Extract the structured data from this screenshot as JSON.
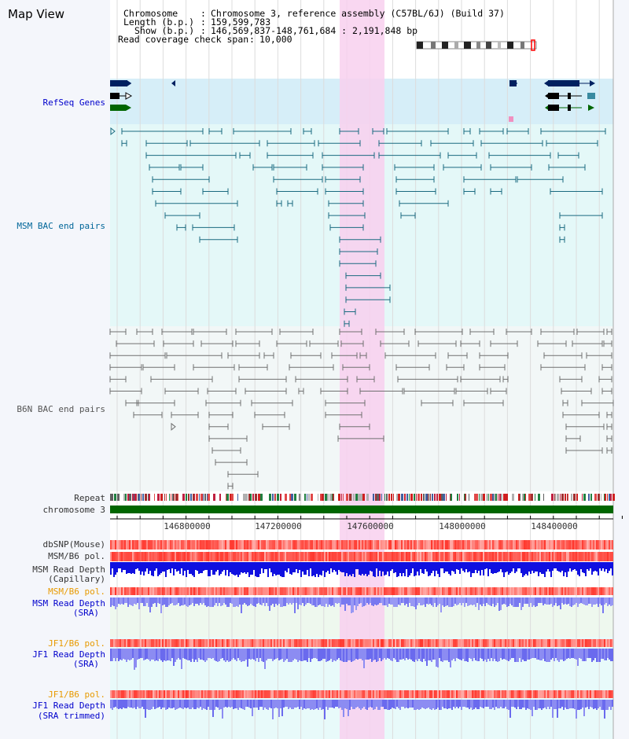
{
  "app": {
    "title": "Map View"
  },
  "info": {
    "chromosome_key": "Chromosome",
    "chromosome_value": "Chromosome 3, reference assembly (C57BL/6J) (Build 37)",
    "length_key": "Length (b.p.)",
    "length_value": "159,599,783",
    "show_key": "Show (b.p.)",
    "show_value": "146,569,837-148,761,684 : 2,191,848 bp",
    "span_key": "Read coverage check span",
    "span_value": "10,000"
  },
  "tracks": {
    "refseq": "RefSeq Genes",
    "msm_bac": "MSM BAC end pairs",
    "b6n_bac": "B6N BAC end pairs",
    "repeat": "Repeat",
    "chromosome": "chromosome 3",
    "dbsnp": "dbSNP(Mouse)",
    "msm_b6_pol_1": "MSM/B6 pol.",
    "msm_depth_cap_1": "MSM Read Depth",
    "msm_depth_cap_2": "(Capillary)",
    "msm_b6_pol_2": "MSM/B6 pol.",
    "msm_depth_sra_1": "MSM Read Depth",
    "msm_depth_sra_2": "(SRA)",
    "jf1_b6_pol_1": "JF1/B6 pol.",
    "jf1_depth_sra_1": "JF1 Read Depth",
    "jf1_depth_sra_2": "(SRA)",
    "jf1_b6_pol_2": "JF1/B6 pol.",
    "jf1_depth_trim_1": "JF1 Read Depth",
    "jf1_depth_trim_2": "(SRA trimmed)"
  },
  "axis": {
    "ticks": [
      "146800000",
      "147200000",
      "147600000",
      "148000000",
      "148400000"
    ]
  },
  "colors": {
    "refseq_bg": "#d6eef8",
    "msm_bg": "#e4f8f8",
    "b6n_bg": "#f2f7f7",
    "highlight": "#f8d0ee",
    "chromosome_bar": "#006600",
    "msm_feature": "#1a6a80",
    "b6n_feature": "#707070",
    "depth_blue": "#1010e0",
    "depth_light": "#8080f0",
    "pol_red": "#f04040",
    "label_blue": "#0000cc",
    "label_teal": "#006699",
    "label_orange": "#e89a00"
  }
}
